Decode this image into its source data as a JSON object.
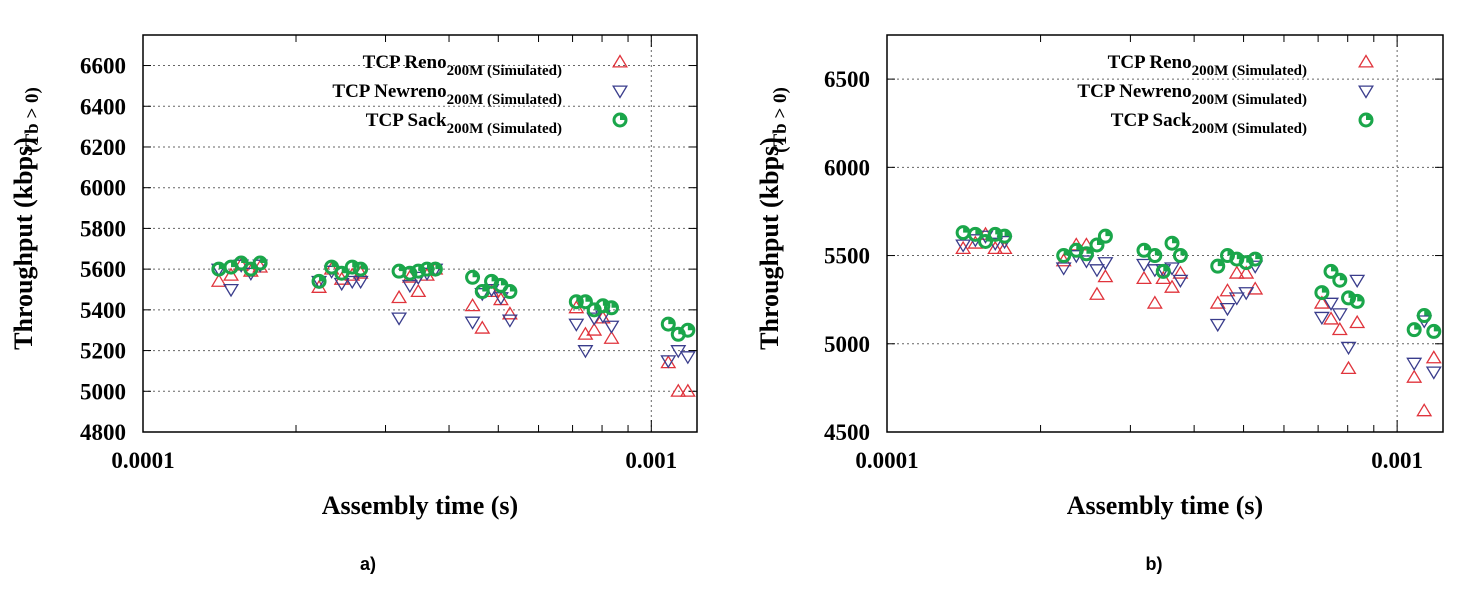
{
  "colors": {
    "reno": "#e0343c",
    "newreno": "#3a3d8c",
    "sack": "#1aa64a"
  },
  "chart_data": [
    {
      "type": "scatter",
      "panel_label": "a)",
      "xlabel": "Assembly time (s)",
      "ylabel": "Throughput (kbps)",
      "ylabel_suffix": "(Tb > 0)",
      "x_scale": "log",
      "xlim": [
        0.0001,
        0.00123
      ],
      "ylim": [
        4800,
        6750
      ],
      "x_ticks": [
        {
          "value": 0.0001,
          "label": "0.0001"
        },
        {
          "value": 0.001,
          "label": "0.001"
        }
      ],
      "y_ticks": [
        4800,
        5000,
        5200,
        5400,
        5600,
        5800,
        6000,
        6200,
        6400,
        6600
      ],
      "grid": true,
      "legend": "top-right",
      "series": [
        {
          "name": "TCP Reno",
          "name_sub": "200M (Simulated)",
          "marker": "triangle-up",
          "color_key": "reno",
          "points": [
            [
              0.000141,
              5540
            ],
            [
              0.000149,
              5570
            ],
            [
              0.000156,
              5620
            ],
            [
              0.000163,
              5590
            ],
            [
              0.00017,
              5610
            ],
            [
              0.000222,
              5510
            ],
            [
              0.000235,
              5600
            ],
            [
              0.000246,
              5550
            ],
            [
              0.000258,
              5570
            ],
            [
              0.000268,
              5580
            ],
            [
              0.000319,
              5460
            ],
            [
              0.000335,
              5560
            ],
            [
              0.000348,
              5490
            ],
            [
              0.000362,
              5570
            ],
            [
              0.000376,
              5600
            ],
            [
              0.000445,
              5420
            ],
            [
              0.000465,
              5310
            ],
            [
              0.000485,
              5490
            ],
            [
              0.000506,
              5450
            ],
            [
              0.000527,
              5380
            ],
            [
              0.000712,
              5410
            ],
            [
              0.000742,
              5280
            ],
            [
              0.000772,
              5300
            ],
            [
              0.000803,
              5360
            ],
            [
              0.000835,
              5260
            ],
            [
              0.00108,
              5140
            ],
            [
              0.00113,
              5000
            ],
            [
              0.00118,
              5000
            ]
          ]
        },
        {
          "name": "TCP Newreno",
          "name_sub": "200M (Simulated)",
          "marker": "triangle-down",
          "color_key": "newreno",
          "points": [
            [
              0.000141,
              5600
            ],
            [
              0.000149,
              5500
            ],
            [
              0.000156,
              5620
            ],
            [
              0.000163,
              5580
            ],
            [
              0.00017,
              5620
            ],
            [
              0.000222,
              5540
            ],
            [
              0.000235,
              5590
            ],
            [
              0.000246,
              5530
            ],
            [
              0.000258,
              5540
            ],
            [
              0.000268,
              5540
            ],
            [
              0.000319,
              5360
            ],
            [
              0.000335,
              5520
            ],
            [
              0.000348,
              5560
            ],
            [
              0.000362,
              5580
            ],
            [
              0.000376,
              5600
            ],
            [
              0.000445,
              5340
            ],
            [
              0.000465,
              5480
            ],
            [
              0.000485,
              5500
            ],
            [
              0.000506,
              5460
            ],
            [
              0.000527,
              5350
            ],
            [
              0.000712,
              5330
            ],
            [
              0.000742,
              5200
            ],
            [
              0.000772,
              5360
            ],
            [
              0.000803,
              5370
            ],
            [
              0.000835,
              5320
            ],
            [
              0.00108,
              5150
            ],
            [
              0.00113,
              5200
            ],
            [
              0.00118,
              5170
            ]
          ]
        },
        {
          "name": "TCP Sack",
          "name_sub": "200M (Simulated)",
          "marker": "circle",
          "color_key": "sack",
          "points": [
            [
              0.000141,
              5600
            ],
            [
              0.000149,
              5610
            ],
            [
              0.000156,
              5630
            ],
            [
              0.000163,
              5600
            ],
            [
              0.00017,
              5630
            ],
            [
              0.000222,
              5540
            ],
            [
              0.000235,
              5610
            ],
            [
              0.000246,
              5580
            ],
            [
              0.000258,
              5610
            ],
            [
              0.000268,
              5600
            ],
            [
              0.000319,
              5590
            ],
            [
              0.000335,
              5580
            ],
            [
              0.000348,
              5590
            ],
            [
              0.000362,
              5600
            ],
            [
              0.000376,
              5600
            ],
            [
              0.000445,
              5560
            ],
            [
              0.000465,
              5490
            ],
            [
              0.000485,
              5540
            ],
            [
              0.000506,
              5520
            ],
            [
              0.000527,
              5490
            ],
            [
              0.000712,
              5440
            ],
            [
              0.000742,
              5440
            ],
            [
              0.000772,
              5400
            ],
            [
              0.000803,
              5420
            ],
            [
              0.000835,
              5410
            ],
            [
              0.00108,
              5330
            ],
            [
              0.00113,
              5280
            ],
            [
              0.00118,
              5300
            ]
          ]
        }
      ]
    },
    {
      "type": "scatter",
      "panel_label": "b)",
      "xlabel": "Assembly time (s)",
      "ylabel": "Throughput (kbps)",
      "ylabel_suffix": "(Tb > 0)",
      "x_scale": "log",
      "xlim": [
        0.0001,
        0.00123
      ],
      "ylim": [
        4500,
        6750
      ],
      "x_ticks": [
        {
          "value": 0.0001,
          "label": "0.0001"
        },
        {
          "value": 0.001,
          "label": "0.001"
        }
      ],
      "y_ticks": [
        4500,
        5000,
        5500,
        6000,
        6500
      ],
      "grid": true,
      "legend": "top-right",
      "series": [
        {
          "name": "TCP Reno",
          "name_sub": "200M (Simulated)",
          "marker": "triangle-up",
          "color_key": "reno",
          "points": [
            [
              0.000141,
              5540
            ],
            [
              0.000149,
              5570
            ],
            [
              0.000156,
              5620
            ],
            [
              0.000163,
              5540
            ],
            [
              0.00017,
              5540
            ],
            [
              0.000222,
              5470
            ],
            [
              0.000235,
              5560
            ],
            [
              0.000246,
              5560
            ],
            [
              0.000258,
              5280
            ],
            [
              0.000268,
              5380
            ],
            [
              0.000319,
              5370
            ],
            [
              0.000335,
              5230
            ],
            [
              0.000348,
              5370
            ],
            [
              0.000362,
              5320
            ],
            [
              0.000376,
              5400
            ],
            [
              0.000445,
              5230
            ],
            [
              0.000465,
              5300
            ],
            [
              0.000485,
              5400
            ],
            [
              0.000506,
              5400
            ],
            [
              0.000527,
              5310
            ],
            [
              0.000712,
              5230
            ],
            [
              0.000742,
              5140
            ],
            [
              0.000772,
              5080
            ],
            [
              0.000803,
              4860
            ],
            [
              0.000835,
              5120
            ],
            [
              0.00108,
              4810
            ],
            [
              0.00113,
              4620
            ],
            [
              0.00118,
              4920
            ]
          ]
        },
        {
          "name": "TCP Newreno",
          "name_sub": "200M (Simulated)",
          "marker": "triangle-down",
          "color_key": "newreno",
          "points": [
            [
              0.000141,
              5560
            ],
            [
              0.000149,
              5590
            ],
            [
              0.000156,
              5610
            ],
            [
              0.000163,
              5570
            ],
            [
              0.00017,
              5580
            ],
            [
              0.000222,
              5430
            ],
            [
              0.000235,
              5500
            ],
            [
              0.000246,
              5470
            ],
            [
              0.000258,
              5420
            ],
            [
              0.000268,
              5460
            ],
            [
              0.000319,
              5450
            ],
            [
              0.000335,
              5420
            ],
            [
              0.000348,
              5420
            ],
            [
              0.000362,
              5430
            ],
            [
              0.000376,
              5360
            ],
            [
              0.000445,
              5110
            ],
            [
              0.000465,
              5200
            ],
            [
              0.000485,
              5260
            ],
            [
              0.000506,
              5290
            ],
            [
              0.000527,
              5440
            ],
            [
              0.000712,
              5150
            ],
            [
              0.000742,
              5230
            ],
            [
              0.000772,
              5170
            ],
            [
              0.000803,
              4980
            ],
            [
              0.000835,
              5360
            ],
            [
              0.00108,
              4890
            ],
            [
              0.00113,
              5130
            ],
            [
              0.00118,
              4840
            ]
          ]
        },
        {
          "name": "TCP Sack",
          "name_sub": "200M (Simulated)",
          "marker": "circle",
          "color_key": "sack",
          "points": [
            [
              0.000141,
              5630
            ],
            [
              0.000149,
              5620
            ],
            [
              0.000156,
              5580
            ],
            [
              0.000163,
              5620
            ],
            [
              0.00017,
              5610
            ],
            [
              0.000222,
              5500
            ],
            [
              0.000235,
              5530
            ],
            [
              0.000246,
              5510
            ],
            [
              0.000258,
              5560
            ],
            [
              0.000268,
              5610
            ],
            [
              0.000319,
              5530
            ],
            [
              0.000335,
              5500
            ],
            [
              0.000348,
              5410
            ],
            [
              0.000362,
              5570
            ],
            [
              0.000376,
              5500
            ],
            [
              0.000445,
              5440
            ],
            [
              0.000465,
              5500
            ],
            [
              0.000485,
              5480
            ],
            [
              0.000506,
              5460
            ],
            [
              0.000527,
              5480
            ],
            [
              0.000712,
              5290
            ],
            [
              0.000742,
              5410
            ],
            [
              0.000772,
              5360
            ],
            [
              0.000803,
              5260
            ],
            [
              0.000835,
              5240
            ],
            [
              0.00108,
              5080
            ],
            [
              0.00113,
              5160
            ],
            [
              0.00118,
              5070
            ]
          ]
        }
      ]
    }
  ]
}
